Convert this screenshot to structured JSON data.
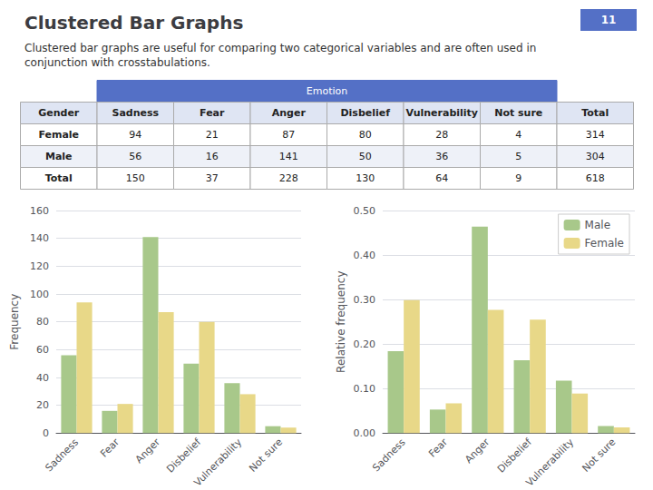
{
  "title": "Clustered Bar Graphs",
  "subtitle": "Clustered bar graphs are useful for comparing two categorical variables and are often used in conjunction with crosstabulations.",
  "annotations": [
    "11"
  ],
  "table": {
    "group_header": "Emotion",
    "columns": [
      "Gender",
      "Sadness",
      "Fear",
      "Anger",
      "Disbelief",
      "Vulnerability",
      "Not sure",
      "Total"
    ],
    "rows": [
      [
        "Female",
        "94",
        "21",
        "87",
        "80",
        "28",
        "4",
        "314"
      ],
      [
        "Male",
        "56",
        "16",
        "141",
        "50",
        "36",
        "5",
        "304"
      ],
      [
        "Total",
        "150",
        "37",
        "228",
        "130",
        "64",
        "9",
        "618"
      ]
    ]
  },
  "chart_data": [
    {
      "type": "bar",
      "categories": [
        "Sadness",
        "Fear",
        "Anger",
        "Disbelief",
        "Vulnerability",
        "Not sure"
      ],
      "series": [
        {
          "name": "Male",
          "color": "#a8c88a",
          "values": [
            56,
            16,
            141,
            50,
            36,
            5
          ]
        },
        {
          "name": "Female",
          "color": "#e8d888",
          "values": [
            94,
            21,
            87,
            80,
            28,
            4
          ]
        }
      ],
      "ylabel": "Frequency",
      "ylim": [
        0,
        160
      ],
      "yticks": [
        0,
        20,
        40,
        60,
        80,
        100,
        120,
        140,
        160
      ],
      "grid": true
    },
    {
      "type": "bar",
      "categories": [
        "Sadness",
        "Fear",
        "Anger",
        "Disbelief",
        "Vulnerability",
        "Not sure"
      ],
      "series": [
        {
          "name": "Male",
          "color": "#a8c88a",
          "values": [
            0.184,
            0.053,
            0.464,
            0.164,
            0.118,
            0.016
          ]
        },
        {
          "name": "Female",
          "color": "#e8d888",
          "values": [
            0.299,
            0.067,
            0.277,
            0.255,
            0.089,
            0.013
          ]
        }
      ],
      "ylabel": "Relative frequency",
      "ylim": [
        0,
        0.5
      ],
      "yticks": [
        {
          "value": 0,
          "label": "0.00"
        },
        {
          "value": 0.1,
          "label": "0.10"
        },
        {
          "value": 0.2,
          "label": "0.20"
        },
        {
          "value": 0.3,
          "label": "0.30"
        },
        {
          "value": 0.4,
          "label": "0.40"
        },
        {
          "value": 0.5,
          "label": "0.50"
        }
      ],
      "grid": true,
      "legend": "upper right"
    }
  ]
}
